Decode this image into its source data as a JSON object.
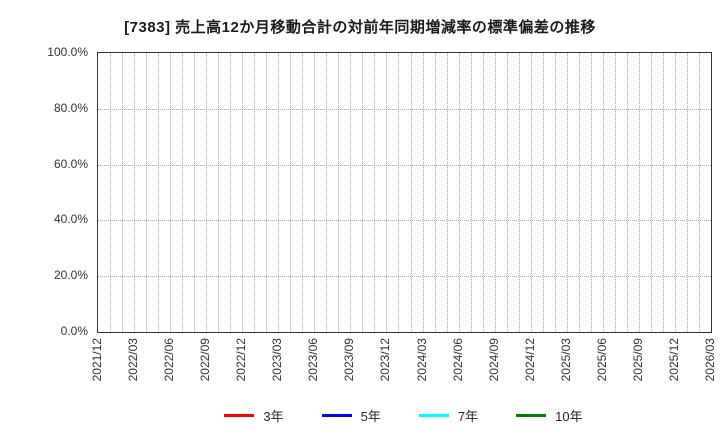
{
  "chart_data": {
    "type": "line",
    "title": "[7383]  売上高12か月移動合計の対前年同期増減率の標準偏差の推移",
    "x_labels": [
      "2021/12",
      "2022/03",
      "2022/06",
      "2022/09",
      "2022/12",
      "2023/03",
      "2023/06",
      "2023/09",
      "2023/12",
      "2024/03",
      "2024/06",
      "2024/09",
      "2024/12",
      "2025/03",
      "2025/06",
      "2025/09",
      "2025/12",
      "2026/03"
    ],
    "x_minor_gridlines_per_label_interval": 3,
    "y_ticks": [
      "100.0%",
      "80.0%",
      "60.0%",
      "40.0%",
      "20.0%",
      "0.0%"
    ],
    "ylim": [
      0,
      100
    ],
    "grid": true,
    "grid_style": "dotted",
    "legend_position": "bottom",
    "series": [
      {
        "name": "3年",
        "color": "#ff0000",
        "values": []
      },
      {
        "name": "5年",
        "color": "#0000ff",
        "values": []
      },
      {
        "name": "7年",
        "color": "#00ffff",
        "values": []
      },
      {
        "name": "10年",
        "color": "#008000",
        "values": []
      }
    ],
    "note": "no data plotted - empty plot area"
  }
}
